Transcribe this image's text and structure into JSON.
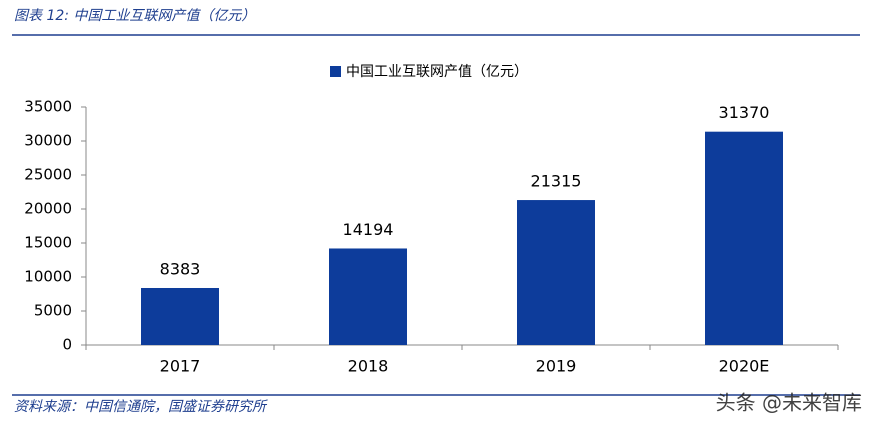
{
  "chart_data": {
    "type": "bar",
    "title": "图表 12:  中国工业互联网产值（亿元）",
    "categories": [
      "2017",
      "2018",
      "2019",
      "2020E"
    ],
    "series": [
      {
        "name": "中国工业互联网产值（亿元）",
        "color": "#0d3c9b",
        "values": [
          8383,
          14194,
          21315,
          31370
        ]
      }
    ],
    "ylim": [
      0,
      35000
    ],
    "yticks": [
      0,
      5000,
      10000,
      15000,
      20000,
      25000,
      30000,
      35000
    ],
    "legend": "top",
    "source": "资料来源：中国信通院，国盛证券研究所",
    "watermark": "头条 @未来智库"
  }
}
